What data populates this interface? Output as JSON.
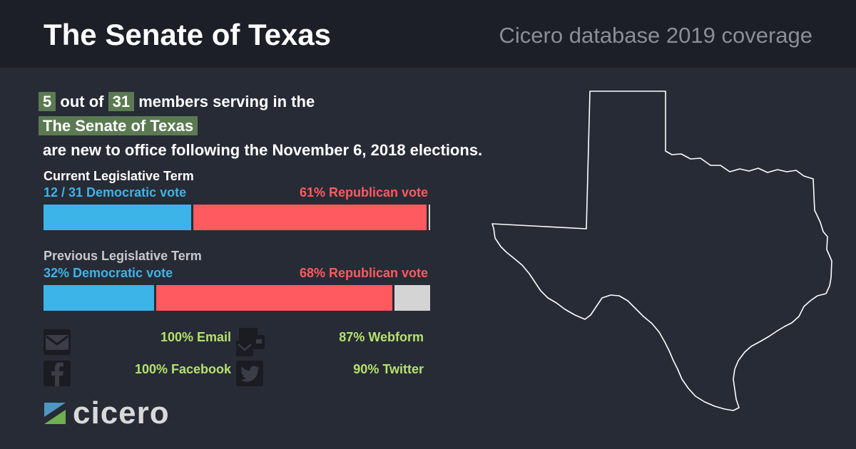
{
  "header": {
    "title": "The Senate of Texas",
    "subtitle": "Cicero database 2019 coverage"
  },
  "headline": {
    "new_count": "5",
    "total_count": "31",
    "line1_mid": "out of",
    "line1_end": "members serving in the",
    "chamber": "The Senate of Texas",
    "line3": "are new to office following the November 6, 2018 elections."
  },
  "current_term": {
    "label": "Current Legislative Term",
    "dem_label": "12 / 31 Democratic vote",
    "rep_label": "61% Republican vote",
    "dem_fraction": 0.387,
    "rep_fraction": 0.61,
    "other_fraction": 0.003
  },
  "previous_term": {
    "label": "Previous Legislative Term",
    "dem_label": "32% Democratic vote",
    "rep_label": "68% Republican vote",
    "dem_fraction": 0.29,
    "rep_fraction": 0.617,
    "other_fraction": 0.093
  },
  "contacts": [
    {
      "icon": "email-icon",
      "text": "100% Email"
    },
    {
      "icon": "webform-icon",
      "text": "87% Webform"
    },
    {
      "icon": "facebook-icon",
      "text": "100% Facebook"
    },
    {
      "icon": "twitter-icon",
      "text": "90% Twitter"
    }
  ],
  "logo": {
    "text": "cicero"
  },
  "colors": {
    "background": "#272b36",
    "header": "#1c1f27",
    "highlight": "#5b7a52",
    "democratic": "#3db4e7",
    "republican": "#ff5a5f",
    "other": "#d4d4d4",
    "contact_text": "#b5e16c"
  }
}
